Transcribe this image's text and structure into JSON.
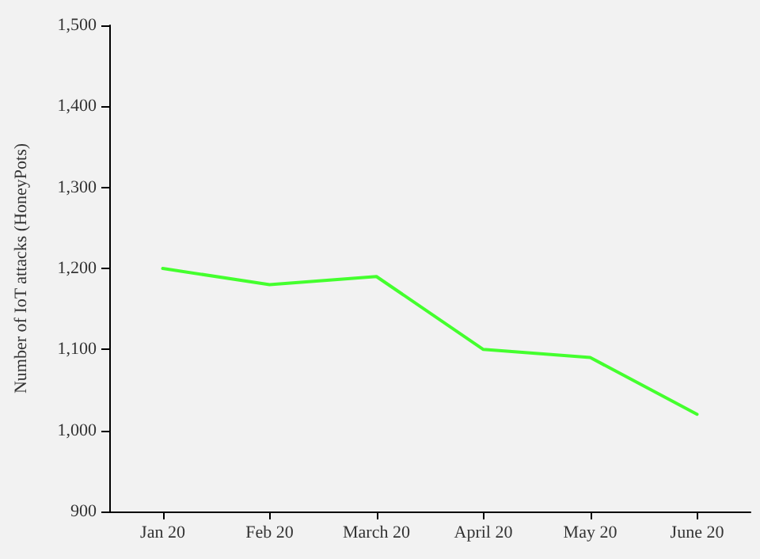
{
  "chart_data": {
    "type": "line",
    "ylabel": "Number of IoT attacks (HoneyPots)",
    "categories": [
      "Jan 20",
      "Feb 20",
      "March 20",
      "April 20",
      "May 20",
      "June 20"
    ],
    "series": [
      {
        "color": "#44ff2e",
        "values": [
          1200,
          1180,
          1190,
          1100,
          1090,
          1020
        ]
      }
    ],
    "ylim": [
      900,
      1500
    ],
    "yticks": [
      {
        "value": 900,
        "label": "900"
      },
      {
        "value": 1000,
        "label": "1,000"
      },
      {
        "value": 1100,
        "label": "1,100"
      },
      {
        "value": 1200,
        "label": "1,200"
      },
      {
        "value": 1300,
        "label": "1,300"
      },
      {
        "value": 1400,
        "label": "1,400"
      },
      {
        "value": 1500,
        "label": "1,500"
      }
    ],
    "grid": false,
    "marker": "none",
    "line_style": "solid"
  }
}
